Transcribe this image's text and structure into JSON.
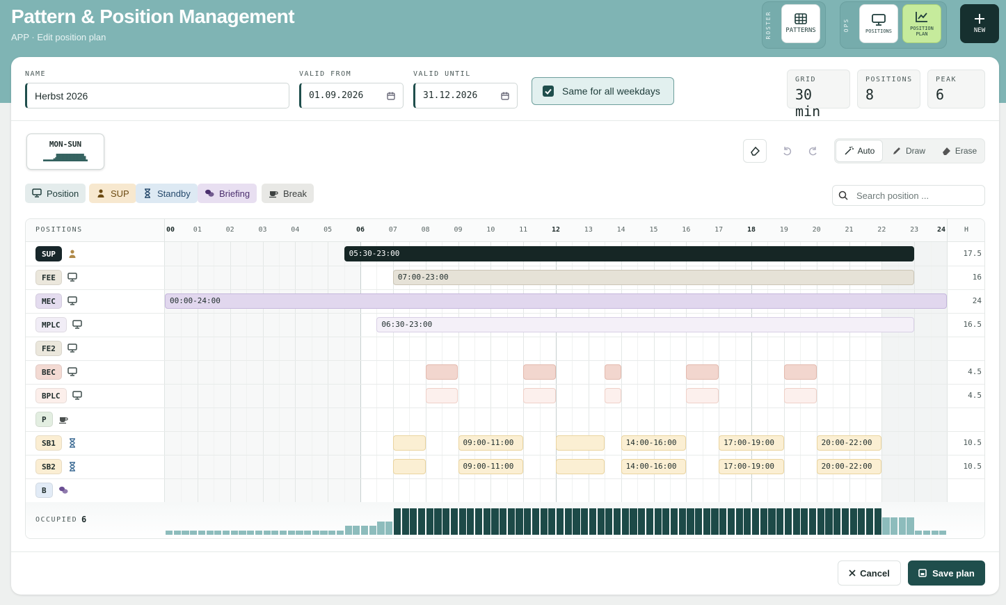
{
  "header": {
    "title": "Pattern & Position Management",
    "subtitle": "APP · Edit position plan"
  },
  "nav": {
    "roster_label": "ROSTER",
    "patterns": "PATTERNS",
    "ops_label": "OPS",
    "positions": "POSITIONS",
    "position_plan": "POSITION PLAN",
    "new": "NEW"
  },
  "form": {
    "name_label": "NAME",
    "name": "Herbst 2026",
    "valid_from_label": "VALID FROM",
    "valid_from": "01.09.2026",
    "valid_until_label": "VALID UNTIL",
    "valid_until": "31.12.2026",
    "same_weekdays": "Same for all weekdays"
  },
  "stats": [
    {
      "label": "GRID",
      "value": "30 min"
    },
    {
      "label": "POSITIONS",
      "value": 8
    },
    {
      "label": "PEAK",
      "value": 6
    }
  ],
  "day_tab": "MON-SUN",
  "tools": [
    "Auto",
    "Draw",
    "Erase"
  ],
  "legend": [
    "Position",
    "SUP",
    "Standby",
    "Briefing",
    "Break"
  ],
  "search_placeholder": "Search position ...",
  "grid": {
    "positions_header": "POSITIONS",
    "hours_header": "H",
    "hours": [
      "00",
      "01",
      "02",
      "03",
      "04",
      "05",
      "06",
      "07",
      "08",
      "09",
      "10",
      "11",
      "12",
      "13",
      "14",
      "15",
      "16",
      "17",
      "18",
      "19",
      "20",
      "21",
      "22",
      "23",
      "24"
    ],
    "rows": [
      {
        "label": "SUP",
        "hours": 17.5,
        "bars": [
          {
            "start": 5.5,
            "end": 23,
            "label": "05:30-23:00"
          }
        ]
      },
      {
        "label": "FEE",
        "hours": 16,
        "bars": [
          {
            "start": 7,
            "end": 23,
            "label": "07:00-23:00"
          }
        ]
      },
      {
        "label": "MEC",
        "hours": 24,
        "bars": [
          {
            "start": 0,
            "end": 24,
            "label": "00:00-24:00"
          }
        ]
      },
      {
        "label": "MPLC",
        "hours": 16.5,
        "bars": [
          {
            "start": 6.5,
            "end": 23,
            "label": "06:30-23:00"
          }
        ]
      },
      {
        "label": "FE2",
        "hours": null,
        "bars": []
      },
      {
        "label": "BEC",
        "hours": 4.5,
        "bars": [
          {
            "start": 8,
            "end": 9
          },
          {
            "start": 11,
            "end": 12
          },
          {
            "start": 13.5,
            "end": 14
          },
          {
            "start": 16,
            "end": 17
          },
          {
            "start": 19,
            "end": 20
          }
        ]
      },
      {
        "label": "BPLC",
        "hours": 4.5,
        "bars": [
          {
            "start": 8,
            "end": 9
          },
          {
            "start": 11,
            "end": 12
          },
          {
            "start": 13.5,
            "end": 14
          },
          {
            "start": 16,
            "end": 17
          },
          {
            "start": 19,
            "end": 20
          }
        ]
      },
      {
        "label": "P",
        "hours": null,
        "bars": []
      },
      {
        "label": "SB1",
        "hours": 10.5,
        "bars": [
          {
            "start": 7,
            "end": 8
          },
          {
            "start": 9,
            "end": 11,
            "label": "09:00-11:00"
          },
          {
            "start": 12,
            "end": 13.5
          },
          {
            "start": 14,
            "end": 16,
            "label": "14:00-16:00"
          },
          {
            "start": 17,
            "end": 19,
            "label": "17:00-19:00"
          },
          {
            "start": 20,
            "end": 22,
            "label": "20:00-22:00"
          }
        ]
      },
      {
        "label": "SB2",
        "hours": 10.5,
        "bars": [
          {
            "start": 7,
            "end": 8
          },
          {
            "start": 9,
            "end": 11,
            "label": "09:00-11:00"
          },
          {
            "start": 12,
            "end": 13.5
          },
          {
            "start": 14,
            "end": 16,
            "label": "14:00-16:00"
          },
          {
            "start": 17,
            "end": 19,
            "label": "17:00-19:00"
          },
          {
            "start": 20,
            "end": 22,
            "label": "20:00-22:00"
          }
        ]
      },
      {
        "label": "B",
        "hours": null,
        "bars": []
      }
    ]
  },
  "occupancy": {
    "label": "OCCUPIED",
    "value": 6,
    "quarter_hours": [
      1,
      1,
      1,
      1,
      1,
      1,
      1,
      1,
      1,
      1,
      1,
      1,
      1,
      1,
      1,
      1,
      1,
      1,
      1,
      1,
      1,
      1,
      2,
      2,
      2,
      2,
      3,
      3,
      6,
      6,
      6,
      6,
      6,
      6,
      6,
      6,
      6,
      6,
      6,
      6,
      6,
      6,
      6,
      6,
      6,
      6,
      6,
      6,
      6,
      6,
      6,
      6,
      6,
      6,
      6,
      6,
      6,
      6,
      6,
      6,
      6,
      6,
      6,
      6,
      6,
      6,
      6,
      6,
      6,
      6,
      6,
      6,
      6,
      6,
      6,
      6,
      6,
      6,
      6,
      6,
      6,
      6,
      6,
      6,
      6,
      6,
      6,
      6,
      4,
      4,
      4,
      4,
      1,
      1,
      1,
      1
    ]
  },
  "footer": {
    "cancel": "Cancel",
    "save": "Save plan"
  }
}
